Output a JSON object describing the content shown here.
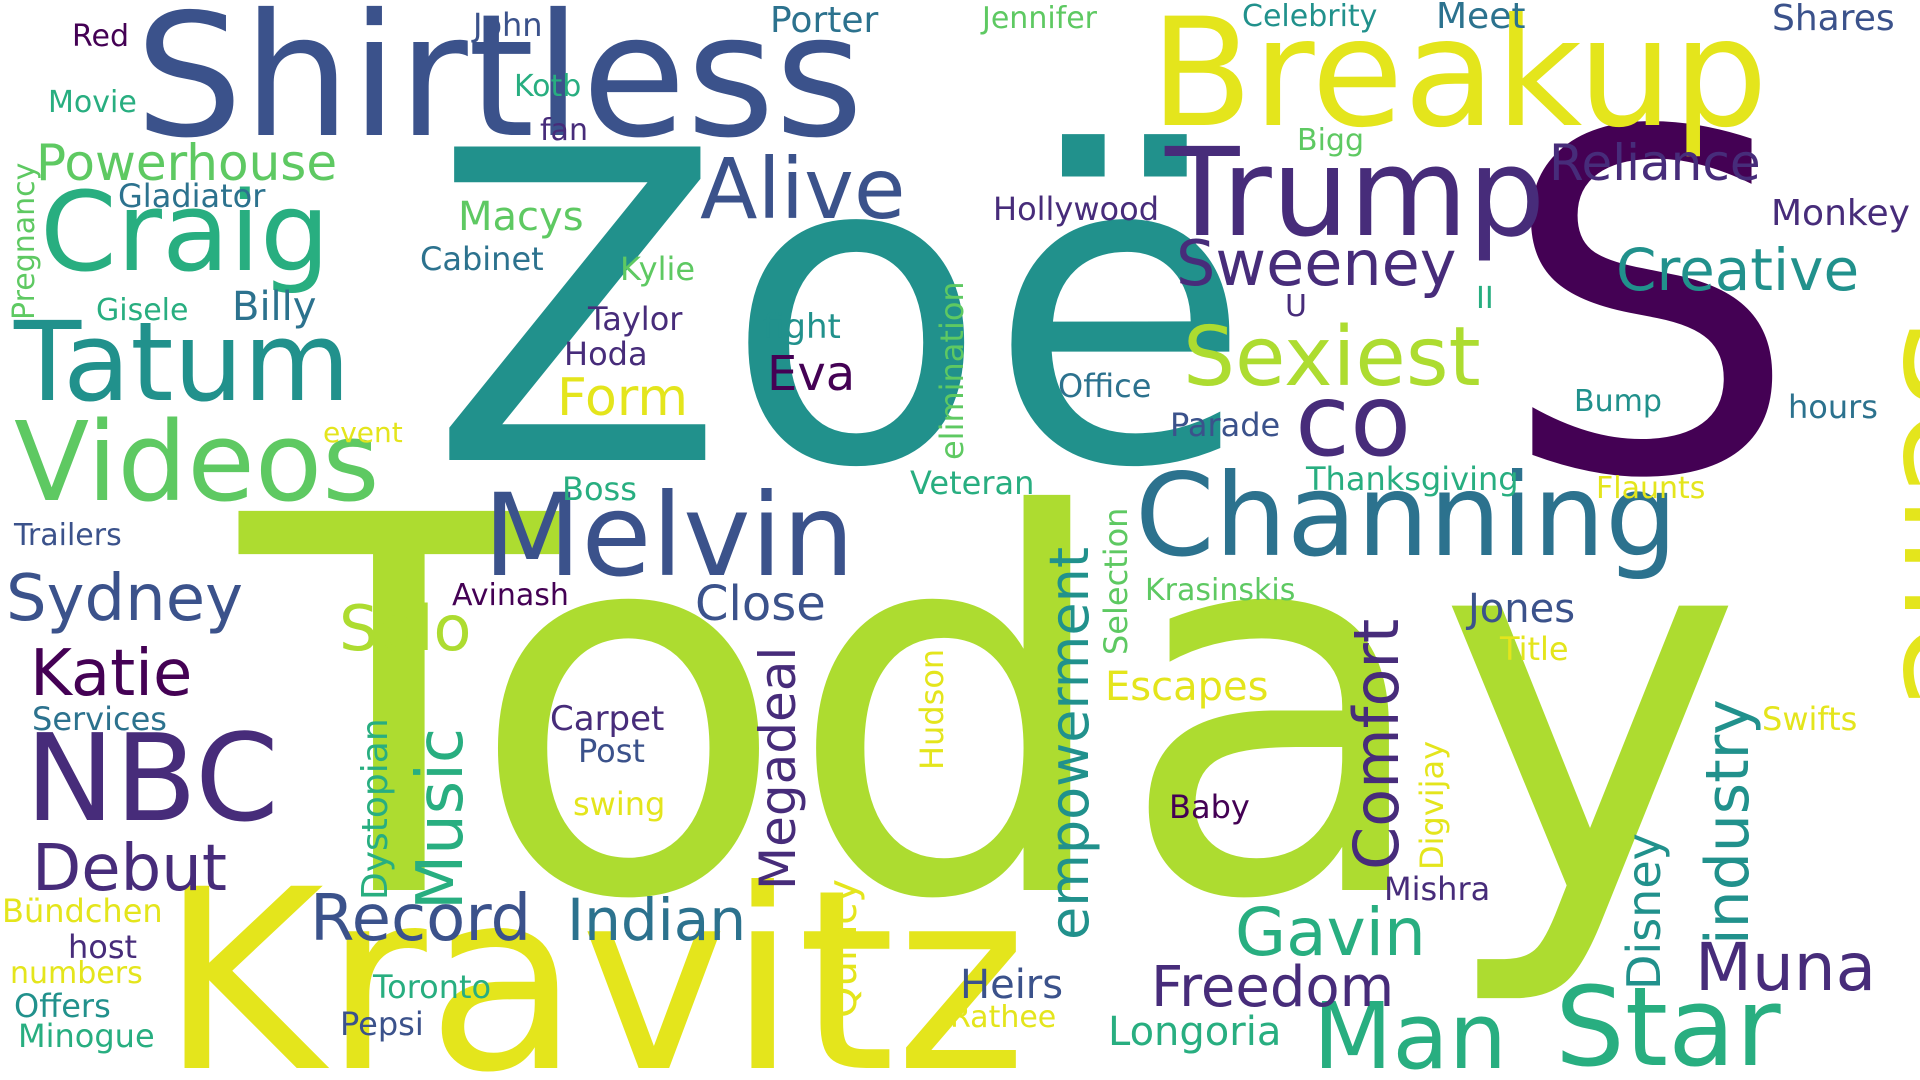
{
  "palette": {
    "deep_purple": "#440154",
    "indigo": "#472c7a",
    "blue": "#3b528b",
    "steel": "#2c728e",
    "teal": "#21918c",
    "green_teal": "#28ae80",
    "green": "#5ec962",
    "lime": "#addc30",
    "yellow": "#e4e51c"
  },
  "words": [
    "Today",
    "Zoë",
    "S",
    "Kravitz",
    "Shirtless",
    "Breakup",
    "Selfie",
    "Trump",
    "Channing",
    "Melvin",
    "Craig",
    "Tatum",
    "Videos",
    "NBC",
    "Alive",
    "Star",
    "Man",
    "co",
    "Sexiest",
    "Sweeney",
    "Creative",
    "Reliance",
    "Powerhouse",
    "Katie",
    "Sydney",
    "Debut",
    "Record",
    "Indian",
    "Music",
    "empowerment",
    "Comfort",
    "industry",
    "Megadeal",
    "Freedom",
    "Gavin",
    "Muna",
    "Solo",
    "Form",
    "Eva",
    "Close",
    "Disney",
    "Dystopian",
    "Quincy",
    "Heirs",
    "Longoria",
    "Jones",
    "Escapes",
    "Macys",
    "Billy",
    "Gladiator",
    "Cabinet",
    "Kylie",
    "Taylor",
    "Hoda",
    "fight",
    "Office",
    "Parade",
    "Hollywood",
    "Monkey",
    "hours",
    "Bump",
    "Thanksgiving",
    "Flaunts",
    "Veteran",
    "Boss",
    "Trailers",
    "Services",
    "Avinash",
    "Krasinskis",
    "Carpet",
    "Post",
    "Baby",
    "Mishra",
    "Title",
    "Swifts",
    "Hudson",
    "Digvijay",
    "Selection",
    "elimination",
    "swing",
    "Bündchen",
    "host",
    "numbers",
    "Offers",
    "Minogue",
    "Toronto",
    "Pepsi",
    "Rathee",
    "Red",
    "John",
    "Movie",
    "Kotb",
    "fan",
    "Porter",
    "Jennifer",
    "Celebrity",
    "Meet",
    "Shares",
    "Bigg",
    "Pregnancy",
    "Gisele",
    "U",
    "II",
    "event"
  ]
}
